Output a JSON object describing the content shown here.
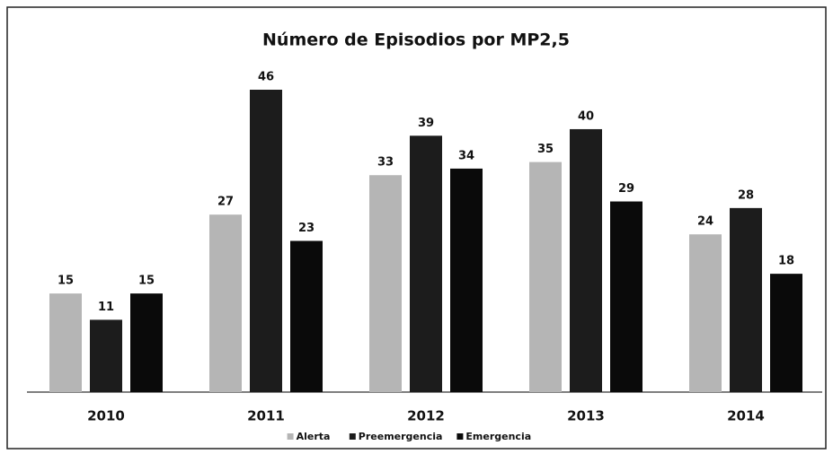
{
  "chart_data": {
    "type": "bar",
    "title": "Número de Episodios por MP2,5",
    "categories": [
      "2010",
      "2011",
      "2012",
      "2013",
      "2014"
    ],
    "series": [
      {
        "name": "Alerta",
        "color": "#b5b5b5",
        "values": [
          15,
          27,
          33,
          35,
          24
        ]
      },
      {
        "name": "Preemergencia",
        "color": "#1c1c1c",
        "values": [
          11,
          46,
          39,
          40,
          28
        ]
      },
      {
        "name": "Emergencia",
        "color": "#0a0a0a",
        "values": [
          15,
          23,
          34,
          29,
          18
        ]
      }
    ]
  }
}
